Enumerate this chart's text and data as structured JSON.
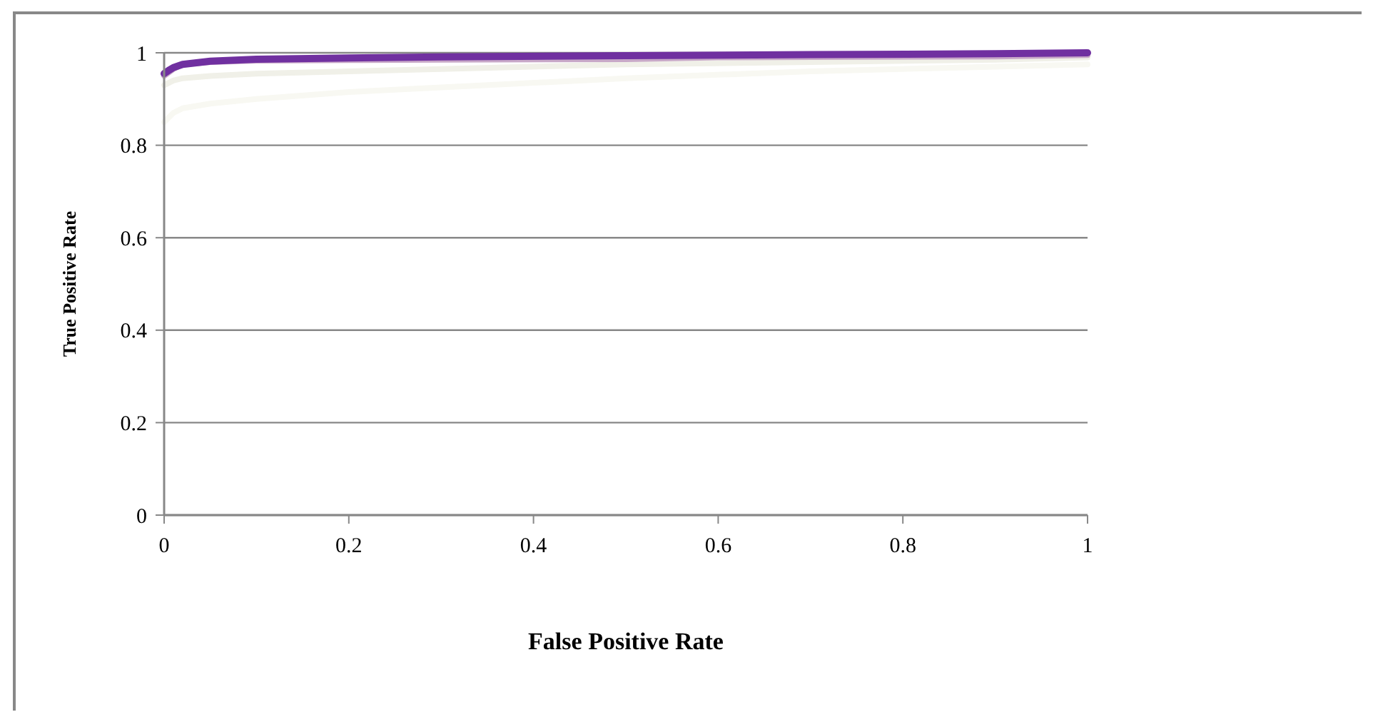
{
  "chart_data": {
    "type": "line",
    "xlabel": "False Positive Rate",
    "ylabel": "True Positive Rate",
    "xlim": [
      0,
      1
    ],
    "xticks": [
      0,
      0.2,
      0.4,
      0.6,
      0.8,
      1
    ],
    "ylim": [
      0,
      1
    ],
    "yticks": [
      0,
      0.2,
      0.4,
      0.6,
      0.8,
      1
    ],
    "grid": "y",
    "marker": "none",
    "line_style": "solid",
    "series": [
      {
        "color": "#f8f8f2",
        "x": [
          0,
          0.01,
          0.02,
          0.05,
          0.1,
          0.2,
          0.3,
          0.5,
          0.7,
          0.9,
          1
        ],
        "values": [
          0.85,
          0.87,
          0.88,
          0.89,
          0.9,
          0.915,
          0.925,
          0.945,
          0.96,
          0.97,
          0.975
        ]
      },
      {
        "color": "#f0f0e8",
        "x": [
          0,
          0.01,
          0.02,
          0.05,
          0.1,
          0.2,
          0.3,
          0.5,
          0.7,
          0.9,
          1
        ],
        "values": [
          0.93,
          0.94,
          0.945,
          0.95,
          0.955,
          0.96,
          0.965,
          0.975,
          0.98,
          0.985,
          0.99
        ]
      },
      {
        "color": "#c8a8c8",
        "x": [
          0,
          0.01,
          0.02,
          0.05,
          0.1,
          0.2,
          0.3,
          0.5,
          0.6,
          0.75,
          0.9,
          1
        ],
        "values": [
          0.95,
          0.965,
          0.975,
          0.98,
          0.983,
          0.984,
          0.985,
          0.986,
          0.99,
          0.991,
          0.992,
          0.995
        ]
      },
      {
        "color": "#7030a0",
        "x": [
          0,
          0.005,
          0.01,
          0.02,
          0.05,
          0.1,
          0.2,
          0.3,
          0.5,
          0.7,
          0.9,
          1
        ],
        "values": [
          0.955,
          0.962,
          0.968,
          0.975,
          0.982,
          0.986,
          0.989,
          0.991,
          0.994,
          0.996,
          0.998,
          1
        ]
      }
    ]
  }
}
